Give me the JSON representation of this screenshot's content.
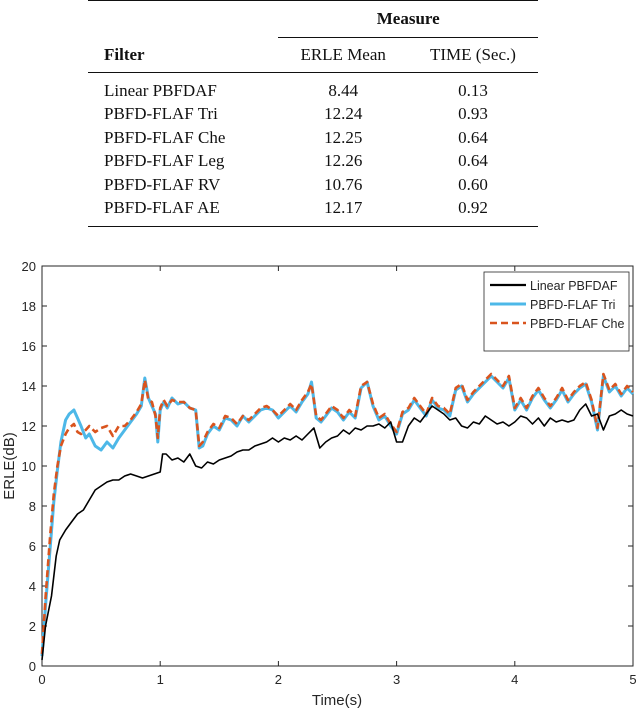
{
  "table": {
    "header_group": "Measure",
    "columns": [
      "Filter",
      "ERLE Mean",
      "TIME (Sec.)"
    ],
    "rows": [
      {
        "filter": "Linear PBFDAF",
        "erle_mean": "8.44",
        "time": "0.13"
      },
      {
        "filter": "PBFD-FLAF Tri",
        "erle_mean": "12.24",
        "time": "0.93"
      },
      {
        "filter": "PBFD-FLAF Che",
        "erle_mean": "12.25",
        "time": "0.64"
      },
      {
        "filter": "PBFD-FLAF Leg",
        "erle_mean": "12.26",
        "time": "0.64"
      },
      {
        "filter": "PBFD-FLAF RV",
        "erle_mean": "10.76",
        "time": "0.60"
      },
      {
        "filter": "PBFD-FLAF AE",
        "erle_mean": "12.17",
        "time": "0.92"
      }
    ]
  },
  "chart_data": {
    "type": "line",
    "title": "",
    "xlabel": "Time(s)",
    "ylabel": "ERLE(dB)",
    "xlim": [
      0,
      5
    ],
    "ylim": [
      0,
      20
    ],
    "xticks": [
      0,
      1,
      2,
      3,
      4,
      5
    ],
    "yticks": [
      0,
      2,
      4,
      6,
      8,
      10,
      12,
      14,
      16,
      18,
      20
    ],
    "grid": false,
    "legend_position": "top-right",
    "series": [
      {
        "name": "Linear PBFDAF",
        "color": "#000000",
        "dash": "solid",
        "x": [
          0,
          0.03,
          0.08,
          0.12,
          0.15,
          0.2,
          0.25,
          0.3,
          0.35,
          0.4,
          0.45,
          0.5,
          0.55,
          0.6,
          0.65,
          0.7,
          0.75,
          0.8,
          0.85,
          0.9,
          0.95,
          1.0,
          1.02,
          1.05,
          1.1,
          1.15,
          1.2,
          1.25,
          1.3,
          1.35,
          1.4,
          1.45,
          1.5,
          1.55,
          1.6,
          1.65,
          1.7,
          1.75,
          1.8,
          1.85,
          1.9,
          1.95,
          2.0,
          2.05,
          2.1,
          2.15,
          2.2,
          2.25,
          2.3,
          2.35,
          2.4,
          2.45,
          2.5,
          2.55,
          2.6,
          2.65,
          2.7,
          2.75,
          2.8,
          2.85,
          2.9,
          2.95,
          3.0,
          3.05,
          3.1,
          3.15,
          3.2,
          3.25,
          3.3,
          3.35,
          3.4,
          3.45,
          3.5,
          3.55,
          3.6,
          3.65,
          3.7,
          3.75,
          3.8,
          3.85,
          3.9,
          3.95,
          4.0,
          4.05,
          4.1,
          4.15,
          4.2,
          4.25,
          4.3,
          4.35,
          4.4,
          4.45,
          4.5,
          4.55,
          4.6,
          4.65,
          4.7,
          4.75,
          4.8,
          4.85,
          4.9,
          4.95,
          5.0
        ],
        "y": [
          0.3,
          2.0,
          3.5,
          5.5,
          6.3,
          6.8,
          7.2,
          7.6,
          7.8,
          8.3,
          8.8,
          9.0,
          9.2,
          9.3,
          9.3,
          9.5,
          9.6,
          9.5,
          9.4,
          9.5,
          9.6,
          9.7,
          10.6,
          10.6,
          10.3,
          10.4,
          10.2,
          10.6,
          10.0,
          9.9,
          10.2,
          10.1,
          10.3,
          10.4,
          10.5,
          10.7,
          10.8,
          10.8,
          11.0,
          11.1,
          11.2,
          11.4,
          11.2,
          11.4,
          11.3,
          11.5,
          11.3,
          11.6,
          11.9,
          10.9,
          11.2,
          11.4,
          11.5,
          11.8,
          11.6,
          11.9,
          11.8,
          12.0,
          12.0,
          12.1,
          11.9,
          12.2,
          11.2,
          11.2,
          12.0,
          12.4,
          12.2,
          12.6,
          13.0,
          12.8,
          12.6,
          12.3,
          12.4,
          12.0,
          11.9,
          12.2,
          12.1,
          12.5,
          12.3,
          12.1,
          12.2,
          12.0,
          12.2,
          12.5,
          12.4,
          12.1,
          12.4,
          12.0,
          12.4,
          12.2,
          12.3,
          12.2,
          12.3,
          12.8,
          13.1,
          12.5,
          12.6,
          11.8,
          12.5,
          12.6,
          12.8,
          12.6,
          12.5
        ]
      },
      {
        "name": "PBFD-FLAF Tri",
        "color": "#4db8e8",
        "dash": "solid",
        "x": [
          0,
          0.03,
          0.07,
          0.1,
          0.13,
          0.16,
          0.2,
          0.23,
          0.27,
          0.3,
          0.33,
          0.37,
          0.4,
          0.45,
          0.5,
          0.55,
          0.6,
          0.65,
          0.7,
          0.75,
          0.8,
          0.84,
          0.87,
          0.9,
          0.93,
          0.96,
          0.98,
          1.0,
          1.03,
          1.06,
          1.1,
          1.15,
          1.2,
          1.25,
          1.3,
          1.33,
          1.36,
          1.4,
          1.45,
          1.5,
          1.55,
          1.6,
          1.65,
          1.7,
          1.75,
          1.8,
          1.85,
          1.9,
          1.95,
          2.0,
          2.05,
          2.1,
          2.15,
          2.2,
          2.25,
          2.28,
          2.32,
          2.36,
          2.4,
          2.45,
          2.5,
          2.55,
          2.6,
          2.65,
          2.7,
          2.75,
          2.8,
          2.85,
          2.9,
          2.95,
          3.0,
          3.05,
          3.1,
          3.15,
          3.2,
          3.25,
          3.3,
          3.35,
          3.4,
          3.45,
          3.5,
          3.55,
          3.6,
          3.65,
          3.7,
          3.75,
          3.8,
          3.85,
          3.9,
          3.95,
          4.0,
          4.05,
          4.1,
          4.15,
          4.2,
          4.25,
          4.3,
          4.35,
          4.4,
          4.45,
          4.5,
          4.55,
          4.6,
          4.65,
          4.7,
          4.75,
          4.8,
          4.85,
          4.9,
          4.95,
          5.0
        ],
        "y": [
          0.5,
          3.0,
          6.0,
          8.2,
          9.8,
          11.2,
          12.3,
          12.6,
          12.8,
          12.4,
          12.0,
          11.4,
          11.6,
          11.0,
          10.8,
          11.2,
          10.9,
          11.4,
          11.8,
          12.2,
          12.6,
          13.0,
          14.4,
          13.4,
          13.0,
          12.6,
          11.2,
          12.8,
          13.2,
          12.9,
          13.4,
          13.1,
          13.2,
          12.9,
          12.8,
          10.9,
          11.0,
          11.6,
          12.0,
          11.8,
          12.4,
          12.3,
          12.0,
          12.5,
          12.2,
          12.5,
          12.8,
          12.9,
          12.8,
          12.4,
          12.7,
          13.0,
          12.7,
          13.2,
          13.6,
          14.2,
          12.4,
          12.2,
          12.5,
          12.9,
          12.7,
          12.3,
          12.7,
          12.4,
          13.9,
          14.2,
          13.0,
          12.3,
          12.5,
          12.0,
          11.6,
          12.6,
          12.8,
          13.3,
          12.9,
          12.5,
          13.3,
          12.9,
          12.8,
          12.5,
          13.8,
          14.0,
          13.2,
          13.6,
          13.9,
          14.2,
          14.5,
          14.2,
          13.9,
          14.4,
          12.8,
          13.3,
          12.8,
          13.4,
          13.8,
          13.3,
          12.9,
          13.3,
          13.8,
          13.2,
          13.6,
          13.9,
          14.1,
          13.2,
          11.8,
          14.5,
          13.7,
          14.0,
          13.5,
          13.9,
          13.6
        ]
      },
      {
        "name": "PBFD-FLAF Che",
        "color": "#d9541e",
        "dash": "dashed",
        "x": [
          0,
          0.03,
          0.07,
          0.1,
          0.13,
          0.16,
          0.2,
          0.23,
          0.27,
          0.3,
          0.33,
          0.37,
          0.4,
          0.45,
          0.5,
          0.55,
          0.6,
          0.65,
          0.7,
          0.75,
          0.8,
          0.84,
          0.87,
          0.9,
          0.93,
          0.96,
          0.98,
          1.0,
          1.03,
          1.06,
          1.1,
          1.15,
          1.2,
          1.25,
          1.3,
          1.33,
          1.36,
          1.4,
          1.45,
          1.5,
          1.55,
          1.6,
          1.65,
          1.7,
          1.75,
          1.8,
          1.85,
          1.9,
          1.95,
          2.0,
          2.05,
          2.1,
          2.15,
          2.2,
          2.25,
          2.28,
          2.32,
          2.36,
          2.4,
          2.45,
          2.5,
          2.55,
          2.6,
          2.65,
          2.7,
          2.75,
          2.8,
          2.85,
          2.9,
          2.95,
          3.0,
          3.05,
          3.1,
          3.15,
          3.2,
          3.25,
          3.3,
          3.35,
          3.4,
          3.45,
          3.5,
          3.55,
          3.6,
          3.65,
          3.7,
          3.75,
          3.8,
          3.85,
          3.9,
          3.95,
          4.0,
          4.05,
          4.1,
          4.15,
          4.2,
          4.25,
          4.3,
          4.35,
          4.4,
          4.45,
          4.5,
          4.55,
          4.6,
          4.65,
          4.7,
          4.75,
          4.8,
          4.85,
          4.9,
          4.95,
          5.0
        ],
        "y": [
          0.6,
          3.4,
          6.6,
          8.6,
          10.0,
          11.0,
          11.6,
          11.9,
          12.1,
          11.7,
          11.6,
          11.8,
          12.0,
          11.7,
          11.9,
          12.0,
          11.5,
          12.0,
          12.0,
          12.3,
          12.7,
          13.1,
          14.3,
          13.3,
          13.2,
          12.5,
          11.4,
          12.9,
          13.3,
          13.0,
          13.3,
          13.2,
          13.2,
          12.9,
          12.8,
          11.0,
          11.2,
          11.7,
          12.1,
          11.9,
          12.5,
          12.4,
          12.1,
          12.5,
          12.3,
          12.6,
          12.9,
          13.0,
          12.8,
          12.5,
          12.8,
          13.1,
          12.8,
          13.3,
          13.7,
          14.1,
          12.5,
          12.3,
          12.6,
          13.0,
          12.8,
          12.4,
          12.8,
          12.5,
          14.0,
          14.2,
          13.1,
          12.4,
          12.6,
          12.1,
          11.7,
          12.7,
          12.9,
          13.4,
          13.0,
          12.6,
          13.4,
          13.0,
          12.9,
          12.6,
          13.9,
          14.1,
          13.3,
          13.7,
          14.0,
          14.3,
          14.6,
          14.3,
          14.0,
          14.5,
          12.9,
          13.4,
          12.9,
          13.5,
          13.9,
          13.4,
          13.0,
          13.4,
          13.9,
          13.3,
          13.7,
          14.0,
          14.2,
          13.3,
          11.9,
          14.6,
          13.8,
          14.1,
          13.6,
          14.0,
          13.7
        ]
      }
    ]
  }
}
